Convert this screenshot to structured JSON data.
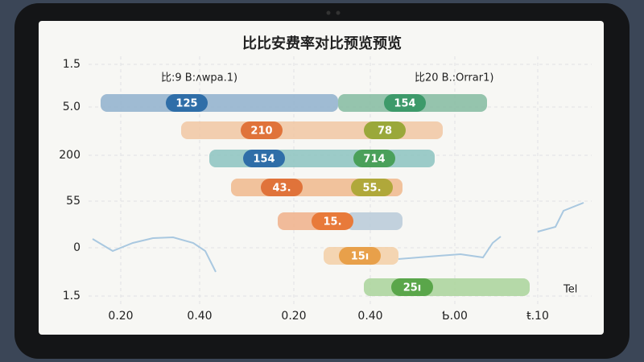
{
  "title": "比比安费率对比预览预览",
  "legend": [
    "比:9 B:ʌwpa.1)",
    "比20 B.:Orrar1)"
  ],
  "y_labels": [
    "1.5",
    "5.0",
    "200",
    "55",
    "0",
    "1.5"
  ],
  "x_labels": [
    "0.20",
    "0.40",
    "0.20",
    "0.40",
    "Ƅ.00",
    "ŧ.10"
  ],
  "corner_label": "Tel",
  "bars": [
    {
      "labels": [
        "125",
        "154"
      ]
    },
    {
      "labels": [
        "210",
        "78"
      ]
    },
    {
      "labels": [
        "154",
        "714"
      ]
    },
    {
      "labels": [
        "43.",
        "55."
      ]
    },
    {
      "labels": [
        "15."
      ]
    },
    {
      "labels": [
        "15ı"
      ]
    },
    {
      "labels": [
        "25ı"
      ]
    }
  ]
}
